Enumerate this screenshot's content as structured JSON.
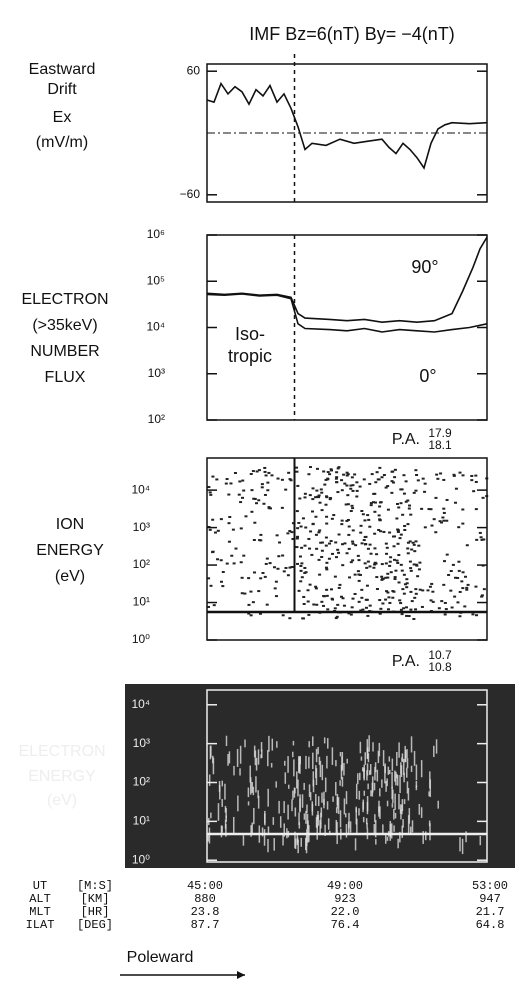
{
  "title": "IMF Bz=6(nT) By= −4(nT)",
  "boundary_x": 47.5,
  "chart_data": [
    {
      "type": "line",
      "ylabel": [
        "Eastward",
        "Drift",
        "Ex",
        "(mV/m)"
      ],
      "xlim": [
        45,
        53
      ],
      "ylim": [
        -67,
        67
      ],
      "yticks": [
        60,
        {
          "value": -60,
          "label": "−60"
        }
      ],
      "zero_line": true,
      "series": [
        {
          "name": "Ex",
          "color": "#111",
          "x": [
            45,
            45.2,
            45.4,
            45.6,
            45.8,
            46,
            46.2,
            46.4,
            46.6,
            46.8,
            47,
            47.2,
            47.4,
            47.6,
            47.8,
            48,
            48.4,
            48.8,
            49.2,
            49.6,
            50,
            50.2,
            50.4,
            50.6,
            50.8,
            51,
            51.2,
            51.4,
            51.6,
            51.8,
            52,
            52.5,
            53
          ],
          "values": [
            32,
            30,
            48,
            38,
            45,
            40,
            28,
            42,
            36,
            46,
            30,
            38,
            24,
            6,
            -16,
            -10,
            -12,
            -6,
            -10,
            -8,
            -6,
            -14,
            -20,
            -10,
            -16,
            -24,
            -34,
            -10,
            4,
            8,
            10,
            9,
            10
          ]
        }
      ]
    },
    {
      "type": "line",
      "ylabel": [
        "ELECTRON",
        "(>35keV)",
        "NUMBER",
        "FLUX"
      ],
      "log": true,
      "xlim": [
        45,
        53
      ],
      "ylim": [
        100,
        1000000
      ],
      "yticks": [
        {
          "value": 1000000,
          "label": "10⁶"
        },
        {
          "value": 100000,
          "label": "10⁵"
        },
        {
          "value": 10000,
          "label": "10⁴"
        },
        {
          "value": 1000,
          "label": "10³"
        },
        {
          "value": 100,
          "label": "10²"
        }
      ],
      "annotations": [
        "Iso-",
        "tropic"
      ],
      "series": [
        {
          "name": "90°",
          "color": "#111",
          "x": [
            45,
            45.5,
            46,
            46.5,
            47,
            47.4,
            47.6,
            47.8,
            48.5,
            49,
            49.5,
            50,
            50.5,
            51,
            51.5,
            52,
            52.3,
            52.6,
            52.8,
            53
          ],
          "values": [
            55000,
            52000,
            55000,
            50000,
            52000,
            45000,
            20000,
            16000,
            15000,
            14000,
            15000,
            13000,
            14000,
            13000,
            14000,
            20000,
            60000,
            200000,
            500000,
            900000
          ]
        },
        {
          "name": "0°",
          "color": "#111",
          "x": [
            45,
            45.5,
            46,
            46.5,
            47,
            47.4,
            47.6,
            47.8,
            48.5,
            49,
            49.5,
            50,
            50.5,
            51,
            51.5,
            52,
            52.5,
            53
          ],
          "values": [
            52000,
            50000,
            53000,
            48000,
            50000,
            42000,
            12000,
            9500,
            9000,
            8500,
            9500,
            8000,
            9000,
            8500,
            8000,
            9000,
            10000,
            12000
          ]
        }
      ]
    },
    {
      "type": "spectrogram",
      "ylabel": [
        "ION",
        "ENERGY",
        "(eV)"
      ],
      "log": true,
      "pa_label": "P.A.",
      "pa_values": [
        17.9,
        18.1
      ],
      "xlim": [
        45,
        53
      ],
      "ylim": [
        1,
        72000
      ],
      "yticks": [
        {
          "value": 10000,
          "label": "10⁴"
        },
        {
          "value": 1000,
          "label": "10³"
        },
        {
          "value": 100,
          "label": "10²"
        },
        {
          "value": 10,
          "label": "10¹"
        },
        {
          "value": 1,
          "label": "10⁰"
        }
      ]
    },
    {
      "type": "spectrogram",
      "ylabel": [
        "ELECTRON",
        "ENERGY",
        "(eV)"
      ],
      "log": true,
      "dark": true,
      "pa_label": "P.A.",
      "pa_values": [
        10.7,
        10.8
      ],
      "xlim": [
        45,
        53
      ],
      "ylim": [
        0.9,
        24000
      ],
      "yticks": [
        {
          "value": 10000,
          "label": "10⁴"
        },
        {
          "value": 1000,
          "label": "10³"
        },
        {
          "value": 100,
          "label": "10²"
        },
        {
          "value": 10,
          "label": "10¹"
        },
        {
          "value": 1,
          "label": "10⁰"
        }
      ]
    }
  ],
  "ephemeris": {
    "rows": [
      [
        "UT",
        "[M:S]",
        "45:00",
        "49:00",
        "53:00"
      ],
      [
        "ALT",
        "[KM]",
        "880",
        "923",
        "947"
      ],
      [
        "MLT",
        "[HR]",
        "23.8",
        "22.0",
        "21.7"
      ],
      [
        "ILAT",
        "[DEG]",
        "87.7",
        "76.4",
        "64.8"
      ]
    ]
  },
  "footer": "Poleward"
}
